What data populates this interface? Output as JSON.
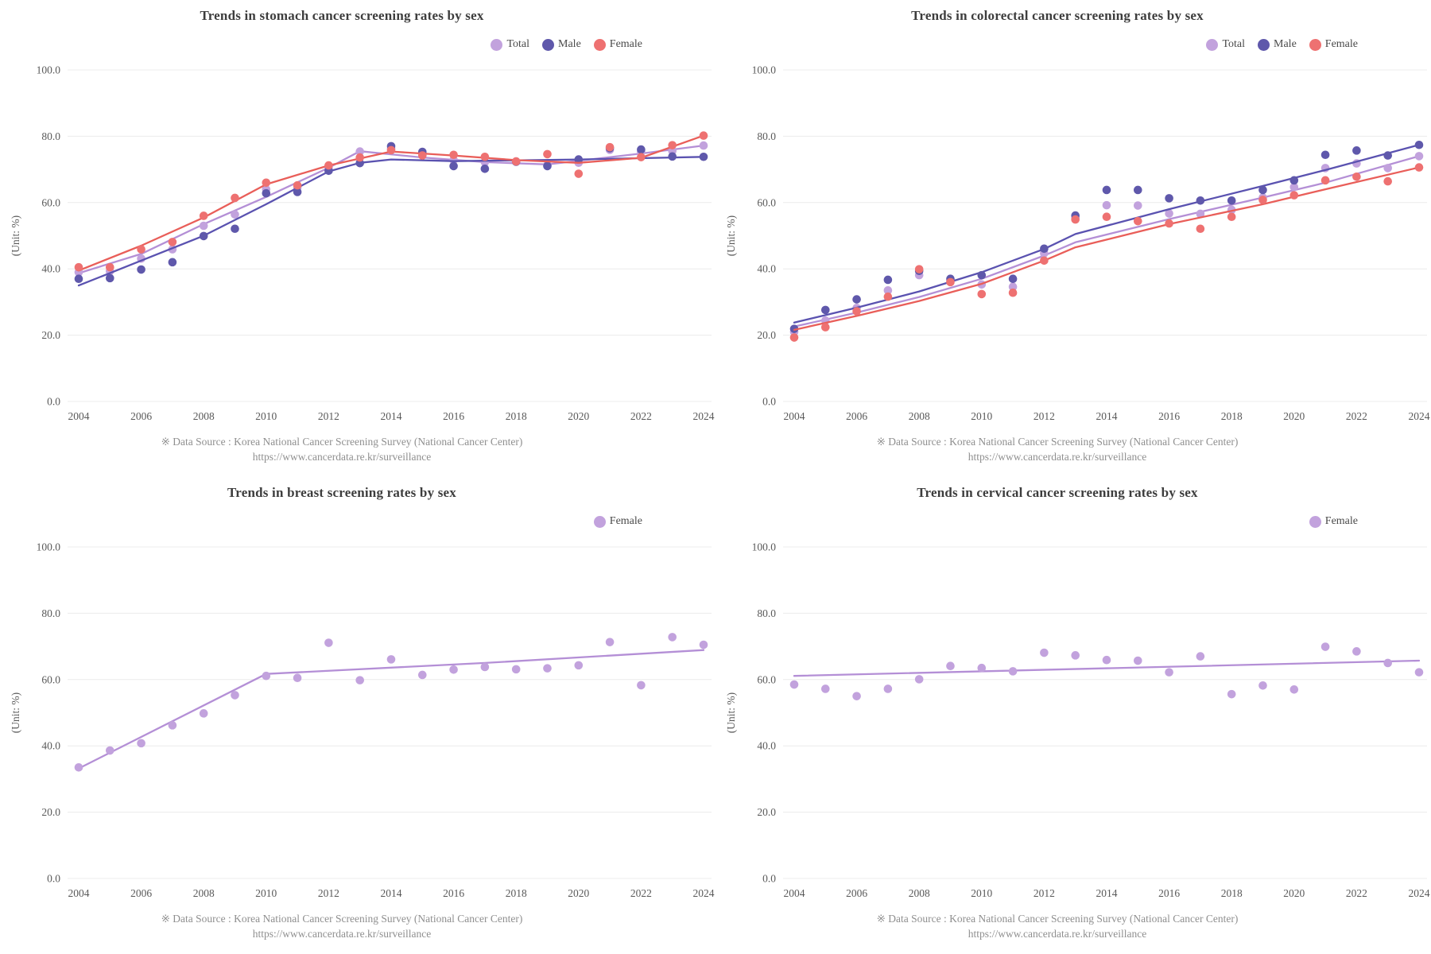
{
  "footer": {
    "line1": "※ Data Source : Korea National Cancer Screening Survey (National Cancer Center)",
    "line2": "https://www.cancerdata.re.kr/surveillance"
  },
  "axis": {
    "unit_label": "(Unit: %)",
    "y_ticks": [
      0,
      20,
      40,
      60,
      80,
      100
    ],
    "y_tick_labels": [
      "0.0",
      "20.0",
      "40.0",
      "60.0",
      "80.0",
      "100.0"
    ],
    "x_tick_years": [
      2004,
      2006,
      2008,
      2010,
      2012,
      2014,
      2016,
      2018,
      2020,
      2022,
      2024
    ],
    "x_tick_labels": [
      "2004",
      "2006",
      "2008",
      "2010",
      "2012",
      "2014",
      "2016",
      "2018",
      "2020",
      "2022",
      "2024"
    ]
  },
  "colors": {
    "grid": "#ececec",
    "title_text": "#3d3d3d",
    "axis_text": "#595959",
    "footer_text": "#8f8f8f",
    "total": "#c2a2dd",
    "total_line": "#b48fd6",
    "male": "#5f58ab",
    "male_line": "#5a52b0",
    "female": "#ee7171",
    "female_line": "#e95e59"
  },
  "chart_data": [
    {
      "id": "stomach",
      "type": "scatter",
      "title": "Trends in stomach cancer screening rates by sex",
      "ylabel": "(Unit: %)",
      "ylim": [
        0,
        100
      ],
      "grid": "horizontal",
      "legend_position": "top-right",
      "x": [
        2004,
        2005,
        2006,
        2007,
        2008,
        2009,
        2010,
        2011,
        2012,
        2013,
        2014,
        2015,
        2016,
        2017,
        2018,
        2019,
        2020,
        2021,
        2022,
        2023,
        2024
      ],
      "series": [
        {
          "name": "Total",
          "color": "#c2a2dd",
          "line_color": "#b48fd6",
          "values": [
            39.0,
            39.3,
            43.1,
            45.9,
            53.0,
            56.4,
            64.0,
            64.5,
            70.4,
            75.4,
            76.3,
            74.7,
            72.8,
            72.2,
            72.4,
            71.3,
            72.0,
            75.9,
            75.3,
            75.6,
            77.2
          ],
          "trend": [
            [
              2004,
              38.7
            ],
            [
              2006,
              44.5
            ],
            [
              2008,
              53.5
            ],
            [
              2010,
              61.7
            ],
            [
              2012,
              70.5
            ],
            [
              2013,
              75.5
            ],
            [
              2015,
              73.6
            ],
            [
              2017,
              72.2
            ],
            [
              2019,
              71.5
            ],
            [
              2022,
              74.8
            ],
            [
              2024,
              77.2
            ]
          ]
        },
        {
          "name": "Male",
          "color": "#5f58ab",
          "line_color": "#5a52b0",
          "values": [
            37.0,
            37.2,
            39.8,
            42.0,
            49.9,
            52.1,
            62.8,
            63.2,
            69.6,
            71.9,
            77.0,
            75.3,
            71.0,
            70.2,
            72.3,
            71.0,
            73.0,
            76.4,
            76.0,
            73.9,
            73.8
          ],
          "trend": [
            [
              2004,
              35.0
            ],
            [
              2006,
              42.5
            ],
            [
              2008,
              50.0
            ],
            [
              2010,
              59.5
            ],
            [
              2012,
              69.4
            ],
            [
              2013,
              72.0
            ],
            [
              2014,
              73.0
            ],
            [
              2016,
              72.5
            ],
            [
              2020,
              73.0
            ],
            [
              2024,
              73.8
            ]
          ]
        },
        {
          "name": "Female",
          "color": "#ee7171",
          "line_color": "#e95e59",
          "values": [
            40.5,
            40.5,
            45.9,
            48.1,
            56.0,
            61.4,
            66.0,
            65.2,
            71.2,
            73.6,
            75.8,
            74.2,
            74.4,
            73.8,
            72.4,
            74.6,
            68.7,
            76.7,
            73.7,
            77.3,
            80.2
          ],
          "trend": [
            [
              2004,
              39.5
            ],
            [
              2006,
              47.0
            ],
            [
              2008,
              55.5
            ],
            [
              2010,
              65.5
            ],
            [
              2012,
              71.2
            ],
            [
              2014,
              75.4
            ],
            [
              2016,
              74.2
            ],
            [
              2018,
              72.8
            ],
            [
              2020,
              72.0
            ],
            [
              2022,
              73.5
            ],
            [
              2024,
              80.2
            ]
          ]
        }
      ]
    },
    {
      "id": "colorectal",
      "type": "scatter",
      "title": "Trends in colorectal cancer screening rates by sex",
      "ylabel": "(Unit: %)",
      "ylim": [
        0,
        100
      ],
      "grid": "horizontal",
      "legend_position": "top-right",
      "x": [
        2004,
        2005,
        2006,
        2007,
        2008,
        2009,
        2010,
        2011,
        2012,
        2013,
        2014,
        2015,
        2016,
        2017,
        2018,
        2019,
        2020,
        2021,
        2022,
        2023,
        2024
      ],
      "series": [
        {
          "name": "Total",
          "color": "#c2a2dd",
          "line_color": "#b48fd6",
          "values": [
            21.0,
            24.4,
            28.2,
            33.5,
            38.1,
            36.4,
            35.3,
            34.6,
            44.7,
            55.3,
            59.2,
            59.1,
            56.7,
            56.6,
            57.8,
            61.5,
            64.7,
            70.4,
            71.8,
            70.4,
            74.0
          ],
          "trend": [
            [
              2004,
              22.6
            ],
            [
              2006,
              26.8
            ],
            [
              2008,
              31.5
            ],
            [
              2010,
              37.0
            ],
            [
              2012,
              44.0
            ],
            [
              2013,
              48.0
            ],
            [
              2016,
              55.0
            ],
            [
              2019,
              61.5
            ],
            [
              2021,
              66.0
            ],
            [
              2024,
              74.0
            ]
          ]
        },
        {
          "name": "Male",
          "color": "#5f58ab",
          "line_color": "#5a52b0",
          "values": [
            21.9,
            27.6,
            30.8,
            36.7,
            39.4,
            37.0,
            38.1,
            37.0,
            46.1,
            56.1,
            63.8,
            63.8,
            61.3,
            60.6,
            60.6,
            63.8,
            66.7,
            74.4,
            75.7,
            74.2,
            77.4
          ],
          "trend": [
            [
              2004,
              23.8
            ],
            [
              2006,
              28.3
            ],
            [
              2008,
              33.2
            ],
            [
              2010,
              39.0
            ],
            [
              2012,
              46.0
            ],
            [
              2013,
              50.5
            ],
            [
              2016,
              58.0
            ],
            [
              2019,
              65.0
            ],
            [
              2021,
              69.8
            ],
            [
              2024,
              77.4
            ]
          ]
        },
        {
          "name": "Female",
          "color": "#ee7171",
          "line_color": "#e95e59",
          "values": [
            19.3,
            22.4,
            27.2,
            31.6,
            39.9,
            36.0,
            32.4,
            32.8,
            42.5,
            54.9,
            55.7,
            54.4,
            53.7,
            52.1,
            55.7,
            60.8,
            62.2,
            66.7,
            67.8,
            66.4,
            70.6
          ],
          "trend": [
            [
              2004,
              21.6
            ],
            [
              2006,
              25.8
            ],
            [
              2008,
              30.3
            ],
            [
              2010,
              35.5
            ],
            [
              2012,
              42.5
            ],
            [
              2013,
              46.5
            ],
            [
              2016,
              53.5
            ],
            [
              2019,
              59.5
            ],
            [
              2021,
              64.0
            ],
            [
              2024,
              70.6
            ]
          ]
        }
      ]
    },
    {
      "id": "breast",
      "type": "scatter",
      "title": "Trends in breast screening rates by sex",
      "ylabel": "(Unit: %)",
      "ylim": [
        0,
        100
      ],
      "grid": "horizontal",
      "legend_position": "top-right",
      "x": [
        2004,
        2005,
        2006,
        2007,
        2008,
        2009,
        2010,
        2011,
        2012,
        2013,
        2014,
        2015,
        2016,
        2017,
        2018,
        2019,
        2020,
        2021,
        2022,
        2023,
        2024
      ],
      "series": [
        {
          "name": "Female",
          "color": "#c2a2dd",
          "line_color": "#b48fd6",
          "values": [
            33.5,
            38.6,
            40.8,
            46.2,
            49.8,
            55.3,
            61.1,
            60.5,
            71.1,
            59.8,
            66.1,
            61.4,
            63.0,
            63.8,
            63.1,
            63.4,
            64.3,
            71.3,
            58.3,
            72.8,
            70.5
          ],
          "trend": [
            [
              2004,
              33.2
            ],
            [
              2010,
              61.7
            ],
            [
              2017,
              65.0
            ],
            [
              2024,
              68.9
            ]
          ]
        }
      ]
    },
    {
      "id": "cervical",
      "type": "scatter",
      "title": "Trends in cervical cancer screening rates by sex",
      "ylabel": "(Unit: %)",
      "ylim": [
        0,
        100
      ],
      "grid": "horizontal",
      "legend_position": "top-right",
      "x": [
        2004,
        2005,
        2006,
        2007,
        2008,
        2009,
        2010,
        2011,
        2012,
        2013,
        2014,
        2015,
        2016,
        2017,
        2018,
        2019,
        2020,
        2021,
        2022,
        2023,
        2024
      ],
      "series": [
        {
          "name": "Female",
          "color": "#c2a2dd",
          "line_color": "#b48fd6",
          "values": [
            58.5,
            57.2,
            55.0,
            57.2,
            60.1,
            64.1,
            63.5,
            62.5,
            68.1,
            67.3,
            65.9,
            65.7,
            62.2,
            67.0,
            55.6,
            58.2,
            57.0,
            69.9,
            68.5,
            65.0,
            62.2
          ],
          "trend": [
            [
              2004,
              61.1
            ],
            [
              2024,
              65.7
            ]
          ]
        }
      ]
    }
  ]
}
